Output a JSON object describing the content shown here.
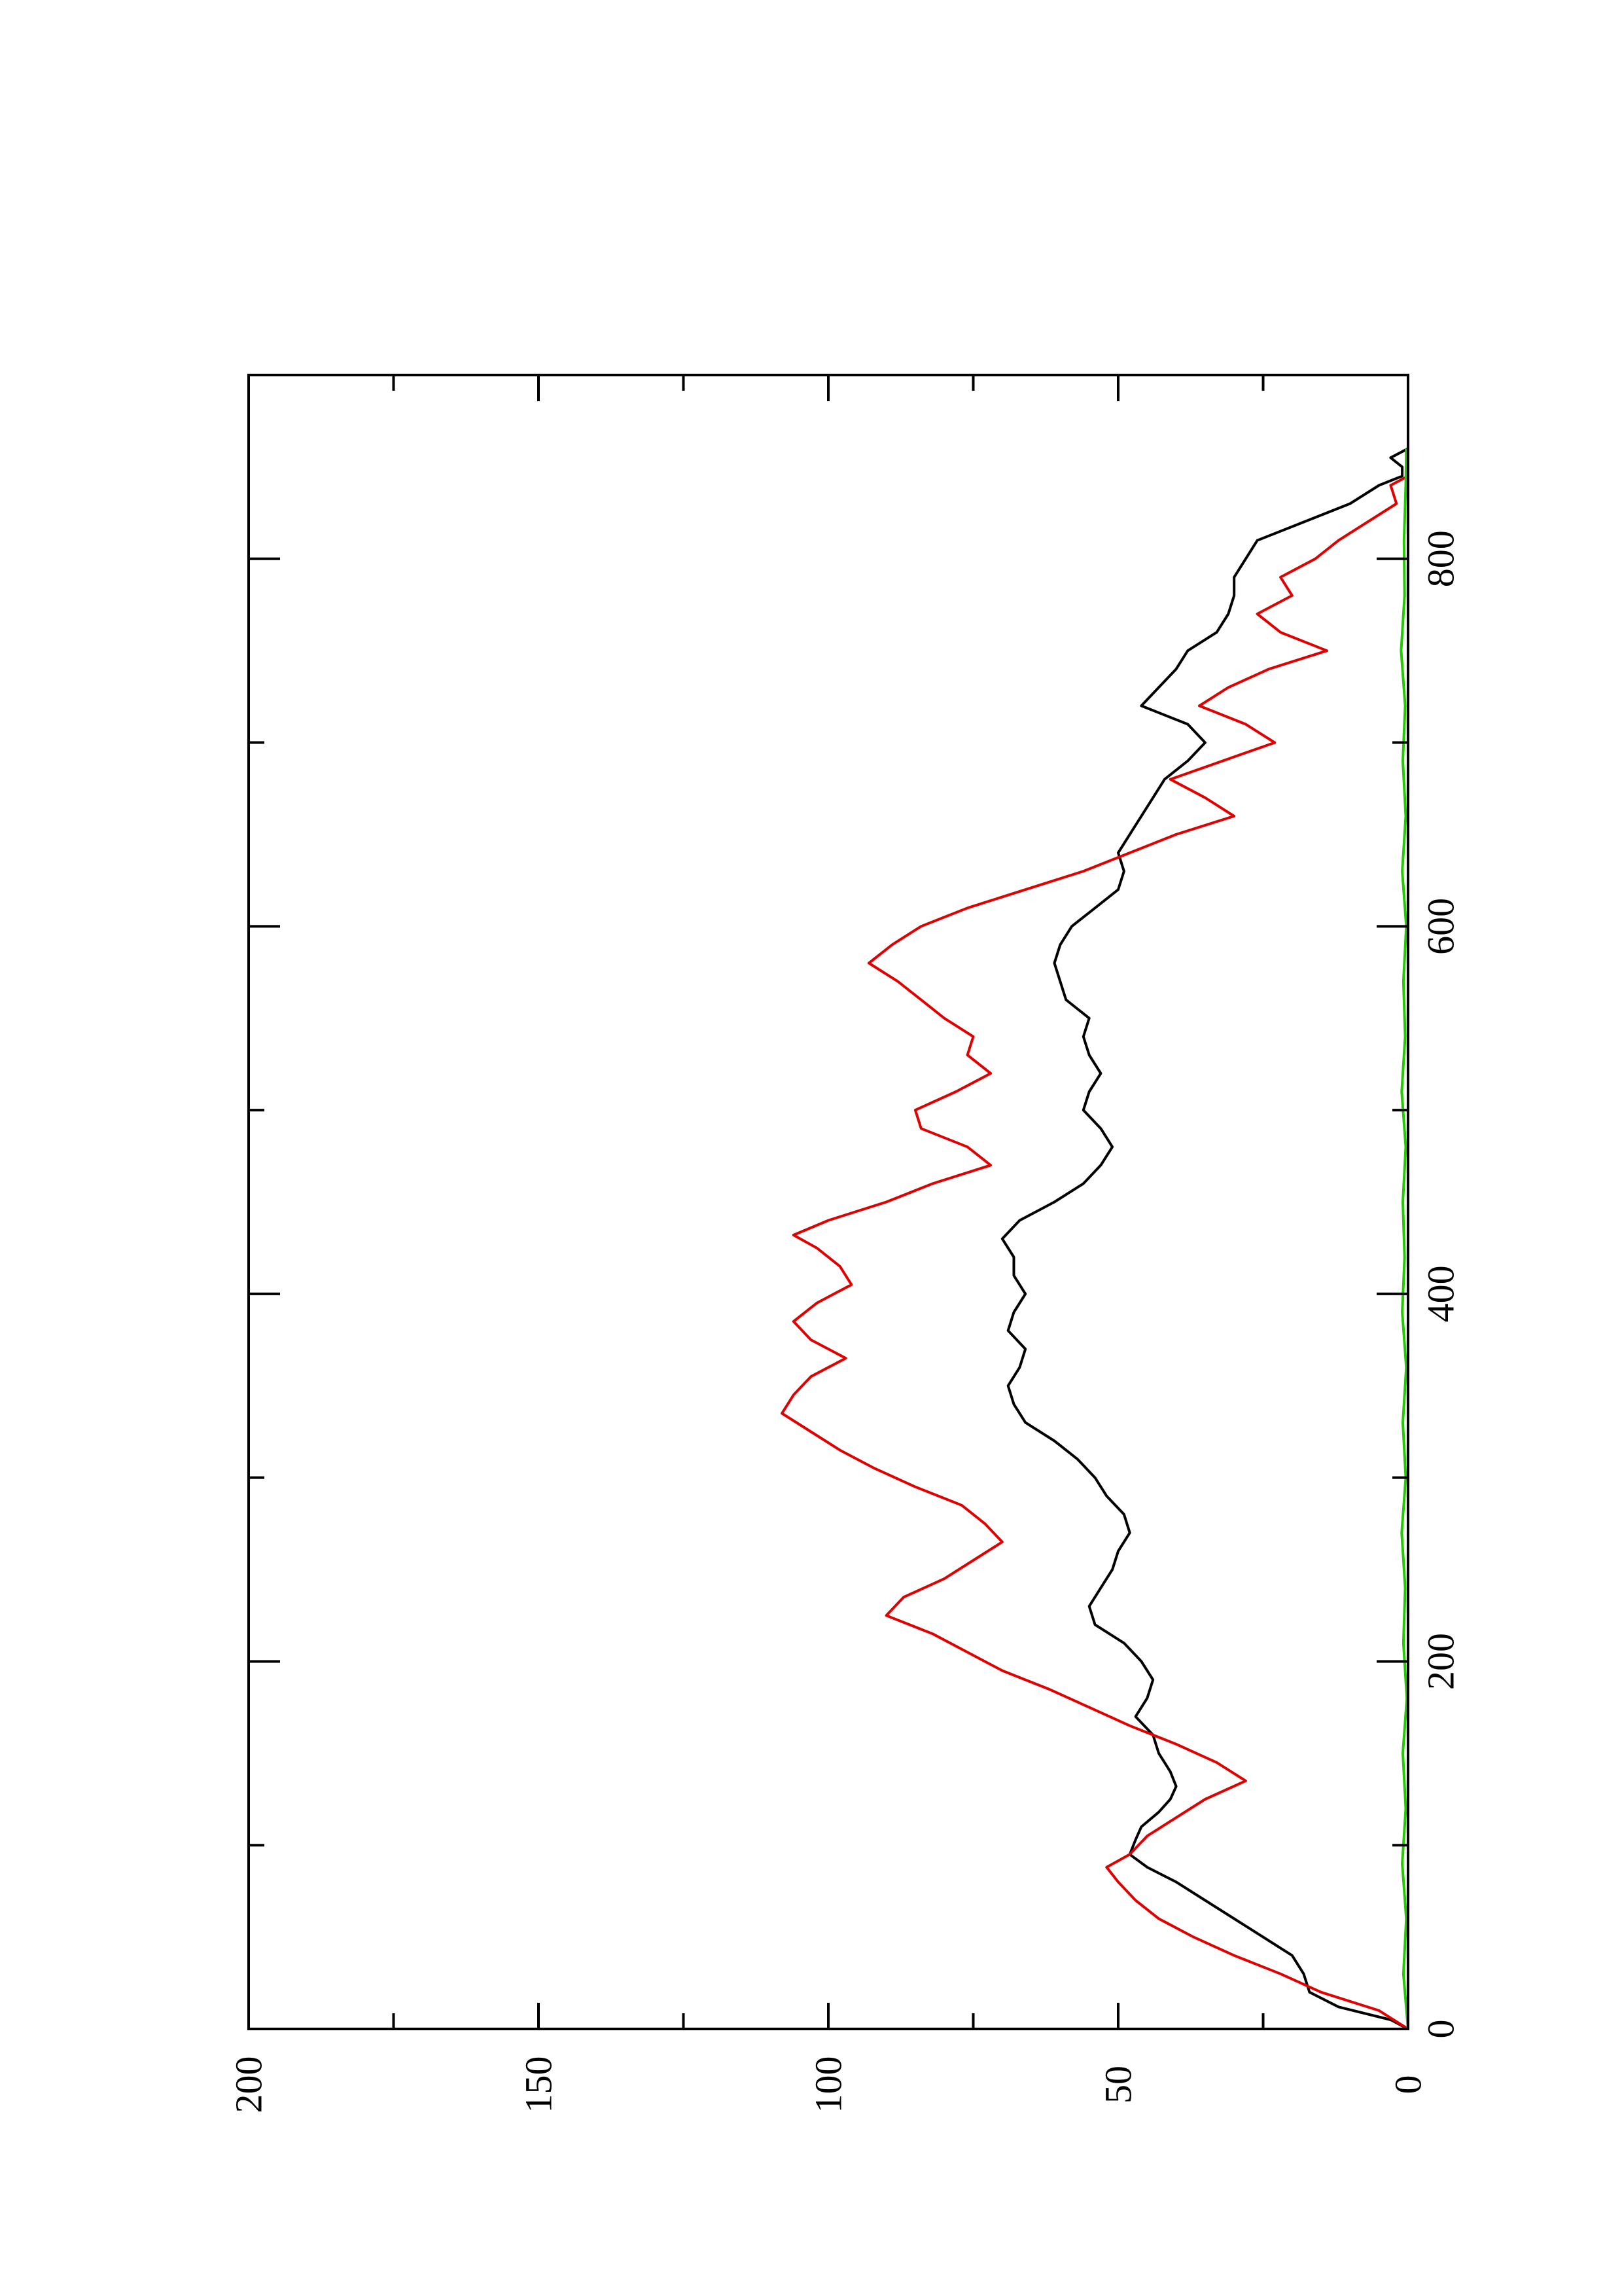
{
  "chart_data": {
    "type": "line",
    "orientation": "rotated-90-ccw",
    "title": "",
    "xlabel": "",
    "ylabel": "",
    "xlim": [
      0,
      900
    ],
    "ylim": [
      0,
      200
    ],
    "x_ticks": [
      0,
      200,
      400,
      600,
      800
    ],
    "x_minor_ticks": [
      100,
      300,
      500,
      700
    ],
    "y_ticks": [
      0,
      50,
      100,
      150,
      200
    ],
    "y_minor_ticks": [
      25,
      75,
      125,
      175
    ],
    "x_tick_labels": [
      "0",
      "200",
      "400",
      "600",
      "800"
    ],
    "y_tick_labels": [
      "0",
      "50",
      "100",
      "150",
      "200"
    ],
    "grid": false,
    "legend": "none",
    "series": [
      {
        "color": "#000000",
        "points": [
          [
            0,
            0
          ],
          [
            5,
            3
          ],
          [
            12,
            12
          ],
          [
            20,
            17
          ],
          [
            30,
            18
          ],
          [
            40,
            20
          ],
          [
            50,
            25
          ],
          [
            60,
            30
          ],
          [
            70,
            35
          ],
          [
            80,
            40
          ],
          [
            88,
            45
          ],
          [
            95,
            48
          ],
          [
            103,
            47
          ],
          [
            110,
            46
          ],
          [
            118,
            43
          ],
          [
            125,
            41
          ],
          [
            132,
            40
          ],
          [
            140,
            41
          ],
          [
            150,
            43
          ],
          [
            160,
            44
          ],
          [
            170,
            47
          ],
          [
            180,
            45
          ],
          [
            190,
            44
          ],
          [
            200,
            46
          ],
          [
            210,
            49
          ],
          [
            220,
            54
          ],
          [
            230,
            55
          ],
          [
            240,
            53
          ],
          [
            250,
            51
          ],
          [
            260,
            50
          ],
          [
            270,
            48
          ],
          [
            280,
            49
          ],
          [
            290,
            52
          ],
          [
            300,
            54
          ],
          [
            310,
            57
          ],
          [
            320,
            61
          ],
          [
            330,
            66
          ],
          [
            340,
            68
          ],
          [
            350,
            69
          ],
          [
            360,
            67
          ],
          [
            370,
            66
          ],
          [
            380,
            69
          ],
          [
            390,
            68
          ],
          [
            400,
            66
          ],
          [
            410,
            68
          ],
          [
            420,
            68
          ],
          [
            430,
            70
          ],
          [
            440,
            67
          ],
          [
            450,
            61
          ],
          [
            460,
            56
          ],
          [
            470,
            53
          ],
          [
            480,
            51
          ],
          [
            490,
            53
          ],
          [
            500,
            56
          ],
          [
            510,
            55
          ],
          [
            520,
            53
          ],
          [
            530,
            55
          ],
          [
            540,
            56
          ],
          [
            550,
            55
          ],
          [
            560,
            59
          ],
          [
            570,
            60
          ],
          [
            580,
            61
          ],
          [
            590,
            60
          ],
          [
            600,
            58
          ],
          [
            610,
            54
          ],
          [
            620,
            50
          ],
          [
            630,
            49
          ],
          [
            640,
            50
          ],
          [
            650,
            48
          ],
          [
            660,
            46
          ],
          [
            670,
            44
          ],
          [
            680,
            42
          ],
          [
            690,
            38
          ],
          [
            700,
            35
          ],
          [
            710,
            38
          ],
          [
            720,
            46
          ],
          [
            730,
            43
          ],
          [
            740,
            40
          ],
          [
            750,
            38
          ],
          [
            760,
            33
          ],
          [
            770,
            31
          ],
          [
            780,
            30
          ],
          [
            790,
            30
          ],
          [
            800,
            28
          ],
          [
            810,
            26
          ],
          [
            820,
            18
          ],
          [
            830,
            10
          ],
          [
            840,
            5
          ],
          [
            845,
            1
          ],
          [
            850,
            1
          ],
          [
            855,
            3
          ],
          [
            860,
            0
          ]
        ]
      },
      {
        "color": "#e00000",
        "points": [
          [
            0,
            0
          ],
          [
            10,
            5
          ],
          [
            20,
            15
          ],
          [
            30,
            22
          ],
          [
            40,
            30
          ],
          [
            50,
            37
          ],
          [
            60,
            43
          ],
          [
            70,
            47
          ],
          [
            80,
            50
          ],
          [
            88,
            52
          ],
          [
            95,
            48
          ],
          [
            105,
            45
          ],
          [
            115,
            40
          ],
          [
            125,
            35
          ],
          [
            135,
            28
          ],
          [
            145,
            33
          ],
          [
            155,
            40
          ],
          [
            165,
            48
          ],
          [
            175,
            55
          ],
          [
            185,
            62
          ],
          [
            195,
            70
          ],
          [
            205,
            76
          ],
          [
            215,
            82
          ],
          [
            225,
            90
          ],
          [
            235,
            87
          ],
          [
            245,
            80
          ],
          [
            255,
            75
          ],
          [
            265,
            70
          ],
          [
            275,
            73
          ],
          [
            285,
            77
          ],
          [
            295,
            85
          ],
          [
            305,
            92
          ],
          [
            315,
            98
          ],
          [
            325,
            103
          ],
          [
            335,
            108
          ],
          [
            345,
            106
          ],
          [
            355,
            103
          ],
          [
            365,
            97
          ],
          [
            375,
            103
          ],
          [
            385,
            106
          ],
          [
            395,
            102
          ],
          [
            405,
            96
          ],
          [
            415,
            98
          ],
          [
            425,
            102
          ],
          [
            432,
            106
          ],
          [
            440,
            100
          ],
          [
            450,
            90
          ],
          [
            460,
            82
          ],
          [
            470,
            72
          ],
          [
            480,
            76
          ],
          [
            490,
            84
          ],
          [
            500,
            85
          ],
          [
            510,
            78
          ],
          [
            520,
            72
          ],
          [
            530,
            76
          ],
          [
            540,
            75
          ],
          [
            550,
            80
          ],
          [
            560,
            84
          ],
          [
            570,
            88
          ],
          [
            580,
            93
          ],
          [
            590,
            89
          ],
          [
            600,
            84
          ],
          [
            610,
            76
          ],
          [
            620,
            66
          ],
          [
            630,
            56
          ],
          [
            640,
            48
          ],
          [
            650,
            40
          ],
          [
            660,
            30
          ],
          [
            670,
            35
          ],
          [
            680,
            41
          ],
          [
            690,
            32
          ],
          [
            700,
            23
          ],
          [
            710,
            28
          ],
          [
            720,
            36
          ],
          [
            730,
            31
          ],
          [
            740,
            24
          ],
          [
            750,
            14
          ],
          [
            760,
            22
          ],
          [
            770,
            26
          ],
          [
            780,
            20
          ],
          [
            790,
            22
          ],
          [
            800,
            16
          ],
          [
            810,
            12
          ],
          [
            820,
            7
          ],
          [
            830,
            2
          ],
          [
            840,
            3
          ],
          [
            845,
            0
          ],
          [
            850,
            0
          ],
          [
            860,
            0
          ]
        ]
      },
      {
        "color": "#22cc00",
        "points": [
          [
            0,
            0
          ],
          [
            30,
            0.8
          ],
          [
            60,
            0.3
          ],
          [
            90,
            1.0
          ],
          [
            120,
            0.4
          ],
          [
            150,
            0.9
          ],
          [
            180,
            0.2
          ],
          [
            210,
            0.8
          ],
          [
            240,
            0.5
          ],
          [
            270,
            1.1
          ],
          [
            300,
            0.4
          ],
          [
            330,
            0.9
          ],
          [
            360,
            0.3
          ],
          [
            390,
            1.0
          ],
          [
            420,
            0.6
          ],
          [
            450,
            0.9
          ],
          [
            480,
            0.4
          ],
          [
            510,
            1.1
          ],
          [
            540,
            0.5
          ],
          [
            570,
            0.8
          ],
          [
            600,
            0.3
          ],
          [
            630,
            1.0
          ],
          [
            660,
            0.4
          ],
          [
            690,
            0.9
          ],
          [
            720,
            0.5
          ],
          [
            750,
            1.2
          ],
          [
            780,
            0.6
          ],
          [
            810,
            0.7
          ],
          [
            840,
            0.4
          ],
          [
            860,
            0.3
          ]
        ]
      }
    ]
  }
}
